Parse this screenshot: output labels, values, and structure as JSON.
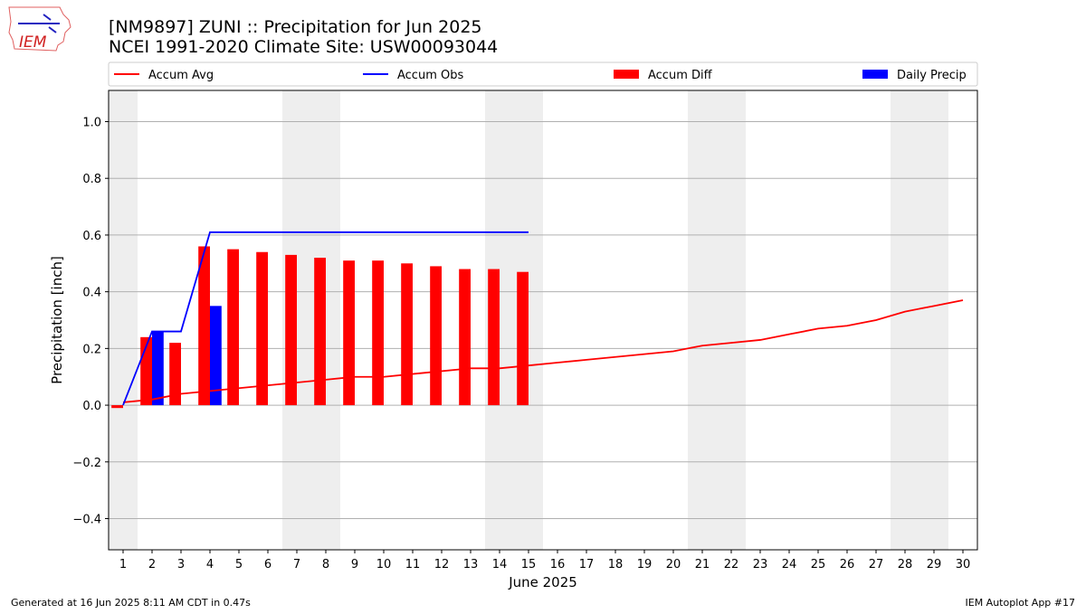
{
  "header": {
    "title_line1": "[NM9897] ZUNI :: Precipitation for Jun 2025",
    "title_line2": "NCEI 1991-2020 Climate Site: USW00093044"
  },
  "logo": {
    "text": "IEM"
  },
  "footer": {
    "generated": "Generated at 16 Jun 2025 8:11 AM CDT in 0.47s",
    "app": "IEM Autoplot App #17"
  },
  "chart_data": {
    "type": "bar",
    "xlabel": "June 2025",
    "ylabel": "Precipitation [inch]",
    "ylim": [
      -0.51,
      1.11
    ],
    "xlim": [
      0.5,
      30.5
    ],
    "yticks": [
      -0.4,
      -0.2,
      0.0,
      0.2,
      0.4,
      0.6,
      0.8,
      1.0
    ],
    "ytick_labels": [
      "−0.4",
      "−0.2",
      "0.0",
      "0.2",
      "0.4",
      "0.6",
      "0.8",
      "1.0"
    ],
    "xticks": [
      1,
      2,
      3,
      4,
      5,
      6,
      7,
      8,
      9,
      10,
      11,
      12,
      13,
      14,
      15,
      16,
      17,
      18,
      19,
      20,
      21,
      22,
      23,
      24,
      25,
      26,
      27,
      28,
      29,
      30
    ],
    "grid": "horizontal",
    "weekend_shading": [
      [
        0.5,
        1.5
      ],
      [
        6.5,
        8.5
      ],
      [
        13.5,
        15.5
      ],
      [
        20.5,
        22.5
      ],
      [
        27.5,
        29.5
      ]
    ],
    "legend_position": "top",
    "colors": {
      "avg": "#ff0000",
      "obs": "#0000ff",
      "diff": "#ff0000",
      "daily": "#0000ff",
      "shade": "#eeeeee",
      "grid": "#b0b0b0"
    },
    "series": [
      {
        "name": "Accum Avg",
        "kind": "line",
        "x": [
          1,
          2,
          3,
          4,
          5,
          6,
          7,
          8,
          9,
          10,
          11,
          12,
          13,
          14,
          15,
          16,
          17,
          18,
          19,
          20,
          21,
          22,
          23,
          24,
          25,
          26,
          27,
          28,
          29,
          30
        ],
        "values": [
          0.01,
          0.02,
          0.04,
          0.05,
          0.06,
          0.07,
          0.08,
          0.09,
          0.1,
          0.1,
          0.11,
          0.12,
          0.13,
          0.13,
          0.14,
          0.15,
          0.16,
          0.17,
          0.18,
          0.19,
          0.21,
          0.22,
          0.23,
          0.25,
          0.27,
          0.28,
          0.3,
          0.33,
          0.35,
          0.37
        ]
      },
      {
        "name": "Accum Obs",
        "kind": "line",
        "x": [
          1,
          2,
          3,
          4,
          5,
          6,
          7,
          8,
          9,
          10,
          11,
          12,
          13,
          14,
          15
        ],
        "values": [
          0.0,
          0.26,
          0.26,
          0.61,
          0.61,
          0.61,
          0.61,
          0.61,
          0.61,
          0.61,
          0.61,
          0.61,
          0.61,
          0.61,
          0.61
        ]
      },
      {
        "name": "Accum Diff",
        "kind": "bar",
        "x": [
          1,
          2,
          3,
          4,
          5,
          6,
          7,
          8,
          9,
          10,
          11,
          12,
          13,
          14,
          15
        ],
        "values": [
          -0.01,
          0.24,
          0.22,
          0.56,
          0.55,
          0.54,
          0.53,
          0.52,
          0.51,
          0.51,
          0.5,
          0.49,
          0.48,
          0.48,
          0.47
        ]
      },
      {
        "name": "Daily Precip",
        "kind": "bar",
        "x": [
          2,
          4
        ],
        "values": [
          0.26,
          0.35
        ]
      }
    ]
  }
}
